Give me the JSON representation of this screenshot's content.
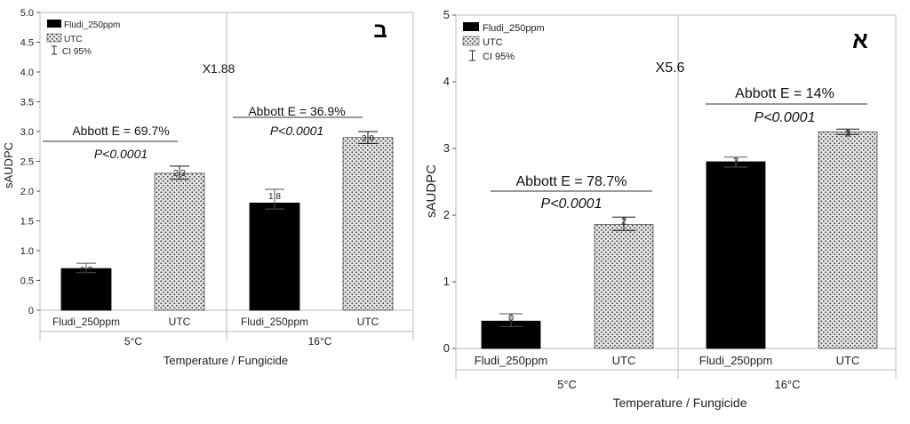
{
  "chart_data": [
    {
      "type": "bar",
      "panel_label": "ב",
      "categories": [
        "Fludi_250ppm",
        "UTC",
        "Fludi_250ppm",
        "UTC"
      ],
      "groups": [
        "5°C",
        "16°C"
      ],
      "values": [
        0.7,
        2.3,
        1.8,
        2.9
      ],
      "value_labels": [
        "0.7",
        "2.3",
        "1.8",
        "2.9"
      ],
      "ci_high": [
        0.79,
        2.42,
        2.03,
        3.0
      ],
      "ci_low": [
        0.63,
        2.2,
        1.7,
        2.8
      ],
      "series": [
        {
          "name": "Fludi_250ppm",
          "color": "#000000",
          "pattern": "solid"
        },
        {
          "name": "UTC",
          "color": "#d8d8d8",
          "pattern": "dotted"
        }
      ],
      "ci_legend": "CI 95%",
      "ylabel": "sAUDPC",
      "xlabel": "Temperature / Fungicide",
      "ylim": [
        0,
        5
      ],
      "yticks": [
        "0",
        "0.5",
        "1.0",
        "1.5",
        "2.0",
        "2.5",
        "3.0",
        "3.5",
        "4.0",
        "4.5",
        "5.0"
      ],
      "ratio_annotation": "X1.88",
      "annotations": [
        {
          "group": 0,
          "abbott": "Abbott E = 69.7%",
          "p": "P<0.0001"
        },
        {
          "group": 1,
          "abbott": "Abbott E = 36.9%",
          "p": "P<0.0001"
        }
      ],
      "legend_position": "top-left"
    },
    {
      "type": "bar",
      "panel_label": "א",
      "categories": [
        "Fludi_250ppm",
        "UTC",
        "Fludi_250ppm",
        "UTC"
      ],
      "groups": [
        "5°C",
        "16°C"
      ],
      "values": [
        0.41,
        1.86,
        2.8,
        3.25
      ],
      "value_labels": [
        "0",
        "2",
        "3",
        "3"
      ],
      "ci_high": [
        0.52,
        1.97,
        2.87,
        3.29
      ],
      "ci_low": [
        0.33,
        1.77,
        2.72,
        3.21
      ],
      "series": [
        {
          "name": "Fludi_250ppm",
          "color": "#000000",
          "pattern": "solid"
        },
        {
          "name": "UTC",
          "color": "#d8d8d8",
          "pattern": "dotted"
        }
      ],
      "ci_legend": "CI 95%",
      "ylabel": "sAUDPC",
      "xlabel": "Temperature / Fungicide",
      "ylim": [
        0,
        5
      ],
      "yticks": [
        "0",
        "1",
        "2",
        "3",
        "4",
        "5"
      ],
      "ratio_annotation": "X5.6",
      "annotations": [
        {
          "group": 0,
          "abbott": "Abbott E = 78.7%",
          "p": "P<0.0001"
        },
        {
          "group": 1,
          "abbott": "Abbott E = 14%",
          "p": "P<0.0001"
        }
      ],
      "legend_position": "top-left"
    }
  ]
}
